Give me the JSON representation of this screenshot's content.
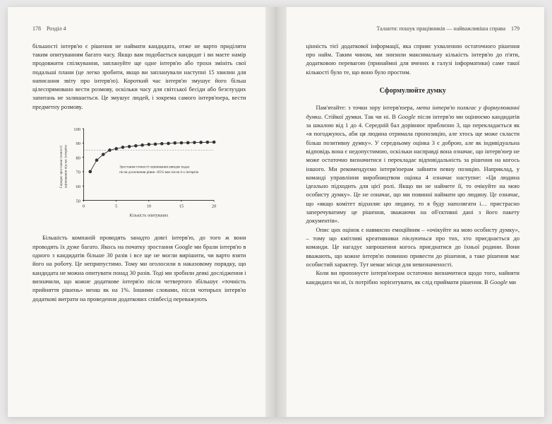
{
  "leftPage": {
    "pageNum": "178",
    "chapterLabel": "Розділ 4",
    "para1": "більшості інтерв'ю є рішення не наймати кандидата, отже не варто приділяти таким опитуванням багато часу. Якщо вам подобається кандидат і ви маєте намір продовжити спілкування, заплануйте ще одне інтерв'ю або трохи змініть свої подальші плани (це легко зробити, якщо ви запланували наступні 15 хвилин для написання звіту про інтерв'ю). Короткий час інтерв'ю змушує його більш цілеспрямовано вести розмову, оскільки часу для світської бесіди або безглуздих запитань не залишається. Це змушує людей, і зокрема самого інтерв'юера, вести предметну розмову.",
    "para2": "Більшість компаній проводять занадто довгі інтерв'ю, до того ж вони проводять їх дуже багато. Якось на початку зростання Google ми брали інтерв'ю в одного з кандидатів більше 30 разів і все ще не могли вирішити, чи варто взяти його на роботу. Це неприпустимо. Тому ми оголосили в наказовому порядку, що кандидата не можна опитувати понад 30 разів. Тоді ми зробили деякі дослідження і визначили, що кожне додаткове інтерв'ю після четвертого збільшує «точність прийняття рішень» менш як на 1%. Іншими словами, після чотирьох інтерв'ю додаткові витрати на проведення додаткових співбесід переважують"
  },
  "rightPage": {
    "pageNum": "179",
    "chapterLabel": "Таланти: пошук працівників — найважливіша справа",
    "para1": "цінність тієї додаткової інформації, яка сприяє ухваленню остаточного рішення про найм. Таким чином, ми знизили максимальну кількість інтерв'ю до п'яти, додатковою перевагою (принаймні для вчених в галузі інформатики) саме такої кількості було те, що воно було простим.",
    "heading": "Сформулюйте думку",
    "para2": "Пам'ятайте: з точки зору інтерв'юера, мета інтерв'ю полягає у формулюванні думки. Стійкої думки. Так чи ні. В Google після інтерв'ю ми оцінюємо кандидатів за шкалою від 1 до 4. Середній бал дорівнює приблизно 3, що перекладається як «я погоджуюсь, аби ця людина отримала пропозицію, але хтось ще може скласти більш позитивну думку». У середньому оцінка 3 є доброю, але як індивідуальна відповідь вона є недопустимою, оскільки насправді вона означає, що інтерв'юер не може остаточно визначитися і перекладає відповідальність за рішення на когось іншого. Ми рекомендуємо інтерв'юерам зайняти певну позицію. Наприклад, у команді управління виробництвом оцінка 4 означає наступне: «Ця людина ідеально підходить для цієї ролі. Якщо ви не наймете її, то очікуйте на мою особисту думку». Це не означає, що ми повинні наймати цю людину. Це означає, що «якщо комітет відхиляє цю людину, то я буду наполягати і… пристрасно заперечуватиму це рішення, зважаючи на об'єктивні дані з його пакету документів».",
    "para3": "Опис цих оцінок є навмисно емоційним – «очікуйте на мою особисту думку», – тому що кмітливі креативники піклуються про тих, хто приєднається до команди. Це нагадує запрошення когось приєднатися до їхньої родини. Вони вважають, що кожне інтерв'ю повинно привести до рішення, а таке рішення має особистий характер. Тут немає місця для невизначеності.",
    "para4": "Коли ви пропонуєте інтерв'юерам остаточно визначитися щодо того, найняти кандидата чи ні, їх потрібно зорієнтувати, як слід приймати рішення. В Google ми"
  },
  "chart": {
    "type": "line",
    "xlabel": "Кількість опитуваних",
    "ylabel": "Середнє зростання точності оцінювання під час інтерв'ю",
    "annotation": "Зростання точності оцінювання швидко падає після досягнення рівня ~85% вже після 4-х інтерв'ю",
    "xlim": [
      0,
      20
    ],
    "ylim": [
      50,
      100
    ],
    "xticks": [
      0,
      5,
      10,
      15,
      20
    ],
    "yticks": [
      50,
      60,
      70,
      80,
      90,
      100
    ],
    "x_values": [
      1,
      2,
      3,
      4,
      5,
      6,
      7,
      8,
      9,
      10,
      11,
      12,
      13,
      14,
      15,
      16,
      17,
      18,
      19,
      20
    ],
    "y_values": [
      70,
      78,
      82,
      85,
      86,
      87,
      87.5,
      88,
      88.5,
      89,
      89.2,
      89.5,
      89.7,
      90,
      90.1,
      90.2,
      90.3,
      90.4,
      90.5,
      90.6
    ],
    "line_color": "#333333",
    "marker_color": "#333333",
    "background_color": "#f9f8f4",
    "axis_color": "#000000",
    "font_size": 6,
    "marker_style": "circle",
    "marker_size": 2.5,
    "line_width": 1
  }
}
